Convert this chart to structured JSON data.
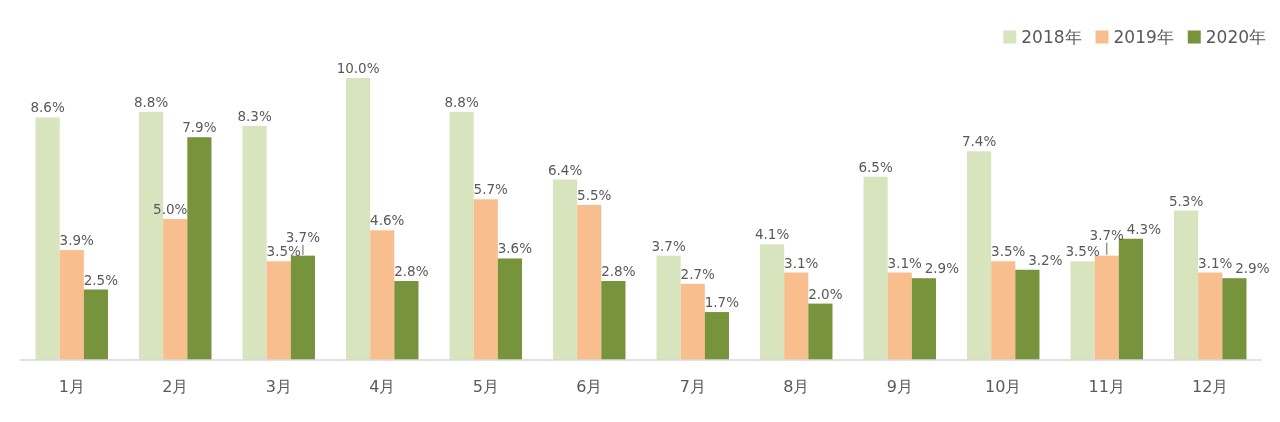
{
  "chart_data": {
    "type": "bar",
    "categories": [
      "1月",
      "2月",
      "3月",
      "4月",
      "5月",
      "6月",
      "7月",
      "8月",
      "9月",
      "10月",
      "11月",
      "12月"
    ],
    "series": [
      {
        "name": "2018年",
        "color": "#d7e4bd",
        "values": [
          8.6,
          8.8,
          8.3,
          10.0,
          8.8,
          6.4,
          3.7,
          4.1,
          6.5,
          7.4,
          3.5,
          5.3
        ],
        "value_labels": [
          "8.6%",
          "8.8%",
          "8.3%",
          "10.0%",
          "8.8%",
          "6.4%",
          "3.7%",
          "4.1%",
          "6.5%",
          "7.4%",
          "3.5%",
          "5.3%"
        ]
      },
      {
        "name": "2019年",
        "color": "#f8be8e",
        "values": [
          3.9,
          5.0,
          3.5,
          4.6,
          5.7,
          5.5,
          2.7,
          3.1,
          3.1,
          3.5,
          3.7,
          3.1
        ],
        "value_labels": [
          "3.9%",
          "5.0%",
          "3.5%",
          "4.6%",
          "5.7%",
          "5.5%",
          "2.7%",
          "3.1%",
          "3.1%",
          "3.5%",
          "3.7%",
          "3.1%"
        ]
      },
      {
        "name": "2020年",
        "color": "#77933c",
        "values": [
          2.5,
          7.9,
          3.7,
          2.8,
          3.6,
          2.8,
          1.7,
          2.0,
          2.9,
          3.2,
          4.3,
          2.9
        ],
        "value_labels": [
          "2.5%",
          "7.9%",
          "3.7%",
          "2.8%",
          "3.6%",
          "2.8%",
          "1.7%",
          "2.0%",
          "2.9%",
          "3.2%",
          "4.3%",
          "2.9%"
        ]
      }
    ],
    "legend": "top right"
  }
}
